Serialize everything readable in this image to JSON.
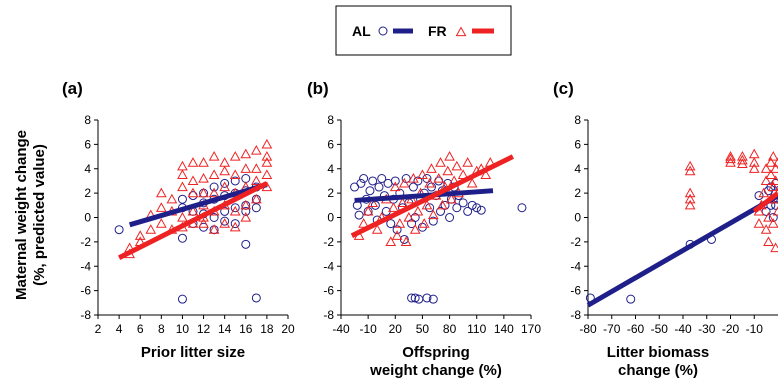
{
  "legend": {
    "entries": [
      {
        "label": "AL",
        "marker": "circle",
        "color": "#1f1f8a"
      },
      {
        "label": "FR",
        "marker": "triangle",
        "color": "#ee2222"
      }
    ],
    "placement": "top-center"
  },
  "y_axis_label": [
    "Maternal weight change",
    "(%, predicted value)"
  ],
  "colors": {
    "AL": "#1f1f8a",
    "FR": "#ee2222"
  },
  "chart_data": [
    {
      "type": "scatter",
      "panel_label": "(a)",
      "xlabel": [
        "Prior litter size"
      ],
      "xlim": [
        2,
        20
      ],
      "ylim": [
        -8,
        8
      ],
      "xticks": [
        2,
        4,
        6,
        8,
        10,
        12,
        14,
        16,
        18,
        20
      ],
      "yticks": [
        -8,
        -6,
        -4,
        -2,
        0,
        2,
        4,
        6,
        8
      ],
      "grid": false,
      "series": [
        {
          "name": "AL",
          "marker": "circle",
          "points": [
            [
              4,
              -1.0
            ],
            [
              10,
              -6.7
            ],
            [
              10,
              -1.7
            ],
            [
              10,
              1.5
            ],
            [
              10,
              0.8
            ],
            [
              11,
              0.5
            ],
            [
              11,
              1.8
            ],
            [
              11,
              -0.5
            ],
            [
              12,
              0.3
            ],
            [
              12,
              1.2
            ],
            [
              12,
              2.0
            ],
            [
              12,
              -0.8
            ],
            [
              13,
              0.0
            ],
            [
              13,
              1.5
            ],
            [
              13,
              2.5
            ],
            [
              13,
              -1.0
            ],
            [
              14,
              0.5
            ],
            [
              14,
              1.8
            ],
            [
              14,
              2.8
            ],
            [
              14,
              -0.3
            ],
            [
              15,
              0.8
            ],
            [
              15,
              2.0
            ],
            [
              15,
              3.0
            ],
            [
              15,
              -0.5
            ],
            [
              16,
              -2.2
            ],
            [
              16,
              1.0
            ],
            [
              16,
              2.2
            ],
            [
              16,
              3.2
            ],
            [
              16,
              0.5
            ],
            [
              17,
              -6.6
            ],
            [
              17,
              1.5
            ],
            [
              17,
              2.5
            ],
            [
              17,
              0.8
            ]
          ],
          "fit": {
            "x": [
              5,
              18
            ],
            "y": [
              -0.6,
              2.7
            ]
          }
        },
        {
          "name": "FR",
          "marker": "triangle",
          "points": [
            [
              5,
              -3.0
            ],
            [
              5,
              -2.5
            ],
            [
              6,
              -2.0
            ],
            [
              6,
              -1.5
            ],
            [
              7,
              -1.0
            ],
            [
              7,
              0.2
            ],
            [
              8,
              -0.5
            ],
            [
              8,
              0.8
            ],
            [
              8,
              2.0
            ],
            [
              9,
              0.5
            ],
            [
              9,
              1.5
            ],
            [
              9,
              -1.0
            ],
            [
              10,
              3.5
            ],
            [
              10,
              2.5
            ],
            [
              10,
              0.0
            ],
            [
              10,
              -0.8
            ],
            [
              10,
              4.2
            ],
            [
              11,
              0.5
            ],
            [
              11,
              2.0
            ],
            [
              11,
              3.0
            ],
            [
              11,
              -0.5
            ],
            [
              11,
              4.5
            ],
            [
              12,
              4.5
            ],
            [
              12,
              3.2
            ],
            [
              12,
              1.0
            ],
            [
              12,
              -0.5
            ],
            [
              12,
              2.0
            ],
            [
              12,
              0.0
            ],
            [
              13,
              5.0
            ],
            [
              13,
              3.5
            ],
            [
              13,
              2.0
            ],
            [
              13,
              0.5
            ],
            [
              13,
              -1.0
            ],
            [
              14,
              4.5
            ],
            [
              14,
              3.8
            ],
            [
              14,
              2.5
            ],
            [
              14,
              1.0
            ],
            [
              14,
              -0.5
            ],
            [
              15,
              5.0
            ],
            [
              15,
              3.5
            ],
            [
              15,
              2.0
            ],
            [
              15,
              0.5
            ],
            [
              15,
              -0.8
            ],
            [
              16,
              5.2
            ],
            [
              16,
              4.0
            ],
            [
              16,
              2.5
            ],
            [
              16,
              1.0
            ],
            [
              16,
              0.0
            ],
            [
              17,
              5.5
            ],
            [
              17,
              4.0
            ],
            [
              17,
              3.0
            ],
            [
              17,
              1.5
            ],
            [
              18,
              6.0
            ],
            [
              18,
              5.0
            ],
            [
              18,
              4.5
            ],
            [
              18,
              3.5
            ],
            [
              18,
              2.5
            ]
          ],
          "fit": {
            "x": [
              4,
              18
            ],
            "y": [
              -3.3,
              2.8
            ]
          }
        }
      ]
    },
    {
      "type": "scatter",
      "panel_label": "(b)",
      "xlabel": [
        "Offspring",
        "weight change (%)"
      ],
      "xlim": [
        -40,
        170
      ],
      "ylim": [
        -8,
        8
      ],
      "xticks": [
        -40,
        -10,
        20,
        50,
        80,
        110,
        140,
        170
      ],
      "yticks": [
        -8,
        -6,
        -4,
        -2,
        0,
        2,
        4,
        6,
        8
      ],
      "grid": false,
      "series": [
        {
          "name": "AL",
          "marker": "circle",
          "points": [
            [
              -25,
              2.5
            ],
            [
              -22,
              1.0
            ],
            [
              -20,
              0.2
            ],
            [
              -18,
              2.8
            ],
            [
              -15,
              3.2
            ],
            [
              -12,
              1.5
            ],
            [
              -10,
              0.5
            ],
            [
              -8,
              2.2
            ],
            [
              -5,
              3.0
            ],
            [
              -2,
              1.0
            ],
            [
              0,
              -0.2
            ],
            [
              2,
              2.5
            ],
            [
              5,
              3.2
            ],
            [
              8,
              1.8
            ],
            [
              10,
              0.5
            ],
            [
              12,
              2.8
            ],
            [
              15,
              -0.5
            ],
            [
              18,
              1.5
            ],
            [
              20,
              3.0
            ],
            [
              22,
              -1.0
            ],
            [
              25,
              2.0
            ],
            [
              28,
              0.8
            ],
            [
              30,
              -1.8
            ],
            [
              32,
              3.2
            ],
            [
              35,
              1.2
            ],
            [
              38,
              -0.5
            ],
            [
              40,
              2.5
            ],
            [
              42,
              0.0
            ],
            [
              45,
              3.0
            ],
            [
              48,
              1.5
            ],
            [
              50,
              -0.8
            ],
            [
              52,
              2.0
            ],
            [
              55,
              3.2
            ],
            [
              58,
              0.8
            ],
            [
              60,
              2.5
            ],
            [
              62,
              -0.3
            ],
            [
              65,
              1.8
            ],
            [
              68,
              3.0
            ],
            [
              70,
              0.5
            ],
            [
              72,
              2.2
            ],
            [
              75,
              1.0
            ],
            [
              78,
              2.8
            ],
            [
              80,
              0.0
            ],
            [
              82,
              1.5
            ],
            [
              85,
              2.5
            ],
            [
              88,
              0.8
            ],
            [
              90,
              1.8
            ],
            [
              95,
              1.2
            ],
            [
              100,
              0.5
            ],
            [
              105,
              1.0
            ],
            [
              110,
              0.8
            ],
            [
              115,
              0.6
            ],
            [
              160,
              0.8
            ],
            [
              38,
              -6.6
            ],
            [
              42,
              -6.6
            ],
            [
              46,
              -6.7
            ],
            [
              55,
              -6.6
            ],
            [
              62,
              -6.7
            ]
          ],
          "fit": {
            "x": [
              -25,
              128
            ],
            "y": [
              1.4,
              2.2
            ]
          }
        },
        {
          "name": "FR",
          "marker": "triangle",
          "points": [
            [
              -20,
              -1.5
            ],
            [
              -15,
              -0.5
            ],
            [
              -10,
              0.5
            ],
            [
              -5,
              1.2
            ],
            [
              0,
              -1.0
            ],
            [
              5,
              0.0
            ],
            [
              10,
              1.5
            ],
            [
              15,
              -2.0
            ],
            [
              18,
              0.8
            ],
            [
              20,
              2.5
            ],
            [
              22,
              -1.5
            ],
            [
              25,
              -0.5
            ],
            [
              28,
              1.2
            ],
            [
              30,
              2.8
            ],
            [
              32,
              -2.0
            ],
            [
              35,
              0.0
            ],
            [
              38,
              1.5
            ],
            [
              40,
              3.2
            ],
            [
              42,
              -1.0
            ],
            [
              45,
              0.5
            ],
            [
              48,
              2.0
            ],
            [
              50,
              3.5
            ],
            [
              52,
              -0.5
            ],
            [
              55,
              1.0
            ],
            [
              58,
              2.8
            ],
            [
              60,
              4.0
            ],
            [
              62,
              0.2
            ],
            [
              65,
              1.8
            ],
            [
              68,
              3.2
            ],
            [
              70,
              4.5
            ],
            [
              72,
              1.0
            ],
            [
              75,
              2.5
            ],
            [
              78,
              3.8
            ],
            [
              80,
              5.0
            ],
            [
              82,
              1.5
            ],
            [
              85,
              3.0
            ],
            [
              88,
              4.2
            ],
            [
              90,
              2.0
            ],
            [
              95,
              3.5
            ],
            [
              100,
              4.5
            ],
            [
              105,
              2.8
            ],
            [
              110,
              3.8
            ],
            [
              115,
              4.0
            ],
            [
              120,
              3.5
            ],
            [
              125,
              4.5
            ]
          ],
          "fit": {
            "x": [
              -28,
              150
            ],
            "y": [
              -1.5,
              5.0
            ]
          }
        }
      ]
    },
    {
      "type": "scatter",
      "panel_label": "(c)",
      "xlabel": [
        "Litter biomass",
        "change (%)"
      ],
      "xlim": [
        -80,
        0
      ],
      "ylim": [
        -8,
        8
      ],
      "xticks": [
        -80,
        -70,
        -60,
        -50,
        -40,
        -30,
        -20,
        -10
      ],
      "yticks": [
        -8,
        -6,
        -4,
        -2,
        0,
        2,
        4,
        6,
        8
      ],
      "grid": false,
      "series": [
        {
          "name": "AL",
          "marker": "circle",
          "points": [
            [
              -79,
              -6.6
            ],
            [
              -62,
              -6.7
            ],
            [
              -37,
              -2.2
            ],
            [
              -28,
              -1.8
            ],
            [
              -8,
              1.8
            ],
            [
              -5,
              0.5
            ],
            [
              -4,
              2.2
            ],
            [
              -3,
              1.0
            ],
            [
              -3,
              2.5
            ],
            [
              -2,
              1.5
            ],
            [
              -2,
              0.0
            ],
            [
              -1,
              2.0
            ],
            [
              -1,
              1.0
            ],
            [
              -1,
              2.8
            ],
            [
              0,
              1.5
            ]
          ],
          "fit": {
            "x": [
              -80,
              0
            ],
            "y": [
              -7.2,
              1.8
            ]
          }
        },
        {
          "name": "FR",
          "marker": "triangle",
          "points": [
            [
              -37,
              4.2
            ],
            [
              -37,
              3.8
            ],
            [
              -37,
              2.0
            ],
            [
              -37,
              1.0
            ],
            [
              -37,
              1.5
            ],
            [
              -20,
              5.0
            ],
            [
              -20,
              4.8
            ],
            [
              -20,
              4.5
            ],
            [
              -15,
              5.0
            ],
            [
              -15,
              4.7
            ],
            [
              -15,
              4.4
            ],
            [
              -10,
              5.2
            ],
            [
              -10,
              4.5
            ],
            [
              -10,
              4.0
            ],
            [
              -8,
              0.5
            ],
            [
              -8,
              -0.5
            ],
            [
              -7,
              1.0
            ],
            [
              -6,
              2.0
            ],
            [
              -5,
              3.0
            ],
            [
              -5,
              4.0
            ],
            [
              -5,
              -1.0
            ],
            [
              -4,
              -2.0
            ],
            [
              -4,
              0.0
            ],
            [
              -3,
              1.5
            ],
            [
              -3,
              3.5
            ],
            [
              -3,
              4.5
            ],
            [
              -2,
              2.5
            ],
            [
              -2,
              -0.5
            ],
            [
              -2,
              5.0
            ],
            [
              -1,
              4.0
            ],
            [
              -1,
              1.5
            ],
            [
              -1,
              3.0
            ],
            [
              -1,
              -2.5
            ],
            [
              0,
              4.5
            ],
            [
              0,
              2.0
            ],
            [
              0,
              0.5
            ]
          ],
          "fit": {
            "x": [
              -10,
              0
            ],
            "y": [
              0.5,
              2.0
            ]
          }
        }
      ]
    }
  ]
}
